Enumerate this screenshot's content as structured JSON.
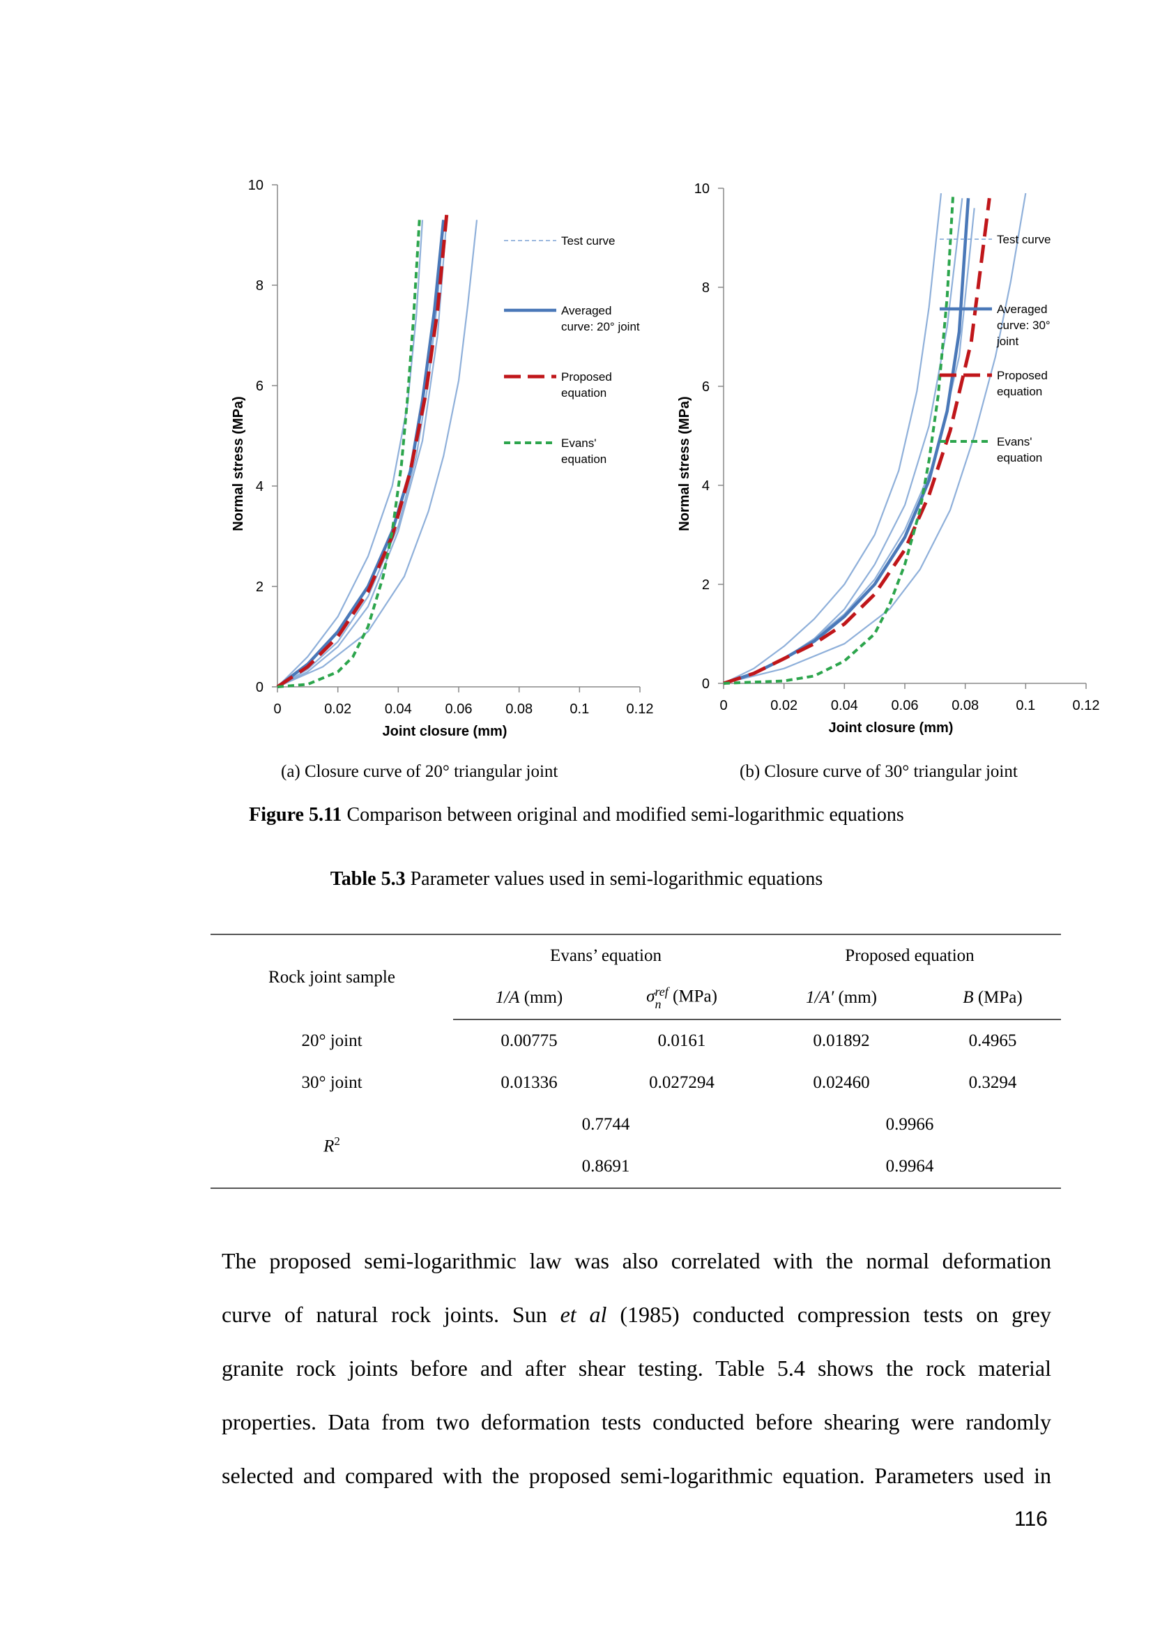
{
  "charts": [
    {
      "id": "a",
      "ylabel": "Normal stress (MPa)",
      "xlabel": "Joint closure (mm)",
      "x_ticks": [
        "0",
        "0.02",
        "0.04",
        "0.06",
        "0.08",
        "0.1",
        "0.12"
      ],
      "y_ticks": [
        "0",
        "2",
        "4",
        "6",
        "8",
        "10"
      ],
      "legend": [
        "Test curve",
        "Averaged curve: 20° joint",
        "Proposed equation",
        "Evans' equation"
      ]
    },
    {
      "id": "b",
      "ylabel": "Normal stress (MPa)",
      "xlabel": "Joint closure  (mm)",
      "x_ticks": [
        "0",
        "0.02",
        "0.04",
        "0.06",
        "0.08",
        "0.1",
        "0.12"
      ],
      "y_ticks": [
        "0",
        "2",
        "4",
        "6",
        "8",
        "10"
      ],
      "legend": [
        "Test curve",
        "Averaged curve: 30° joint",
        "Proposed equation",
        "Evans' equation"
      ]
    }
  ],
  "chart_data": [
    {
      "type": "line",
      "xlabel": "Joint closure (mm)",
      "ylabel": "Normal stress (MPa)",
      "xlim": [
        0,
        0.12
      ],
      "ylim": [
        0,
        10
      ],
      "legend_position": "right",
      "colors": {
        "test": "#7ba2d4",
        "averaged": "#4a78b8",
        "proposed": "#c0161a",
        "evans": "#2ca54c"
      },
      "series": [
        {
          "name": "Test curve",
          "style": "test",
          "x": [
            0,
            0.005,
            0.01,
            0.02,
            0.03,
            0.038,
            0.043,
            0.046,
            0.048
          ],
          "y": [
            0,
            0.3,
            0.6,
            1.4,
            2.6,
            4.0,
            5.6,
            7.4,
            9.3
          ]
        },
        {
          "name": "",
          "style": "test",
          "x": [
            0,
            0.01,
            0.02,
            0.03,
            0.04,
            0.046,
            0.05,
            0.053,
            0.055
          ],
          "y": [
            0,
            0.35,
            0.9,
            1.8,
            3.2,
            4.6,
            6.1,
            7.7,
            9.3
          ]
        },
        {
          "name": "",
          "style": "test",
          "x": [
            0,
            0.01,
            0.02,
            0.03,
            0.04,
            0.048,
            0.053,
            0.056
          ],
          "y": [
            0,
            0.3,
            0.8,
            1.6,
            3.1,
            4.9,
            7.0,
            9.3
          ]
        },
        {
          "name": "",
          "style": "test",
          "x": [
            0,
            0.015,
            0.03,
            0.042,
            0.05,
            0.055,
            0.06,
            0.063,
            0.066
          ],
          "y": [
            0,
            0.4,
            1.1,
            2.2,
            3.5,
            4.6,
            6.1,
            7.6,
            9.3
          ]
        },
        {
          "name": "Averaged curve: 20° joint",
          "style": "averaged",
          "x": [
            0,
            0.01,
            0.02,
            0.03,
            0.038,
            0.044,
            0.048,
            0.052,
            0.055
          ],
          "y": [
            0,
            0.45,
            1.1,
            2.0,
            3.1,
            4.3,
            5.7,
            7.5,
            9.3
          ]
        },
        {
          "name": "Proposed equation",
          "style": "proposed",
          "x": [
            0,
            0.01,
            0.02,
            0.03,
            0.038,
            0.044,
            0.049,
            0.053,
            0.056
          ],
          "y": [
            0,
            0.4,
            1.0,
            1.9,
            3.0,
            4.3,
            5.8,
            7.5,
            9.4
          ]
        },
        {
          "name": "Evans' equation",
          "style": "evans",
          "x": [
            0,
            0.01,
            0.02,
            0.025,
            0.03,
            0.035,
            0.038,
            0.041,
            0.043,
            0.045,
            0.047
          ],
          "y": [
            0,
            0.05,
            0.3,
            0.6,
            1.2,
            2.2,
            3.1,
            4.4,
            5.7,
            7.3,
            9.3
          ]
        }
      ]
    },
    {
      "type": "line",
      "xlabel": "Joint closure  (mm)",
      "ylabel": "Normal stress (MPa)",
      "xlim": [
        0,
        0.12
      ],
      "ylim": [
        0,
        10
      ],
      "legend_position": "right",
      "colors": {
        "test": "#7ba2d4",
        "averaged": "#4a78b8",
        "proposed": "#c0161a",
        "evans": "#2ca54c"
      },
      "series": [
        {
          "name": "Test curve",
          "style": "test",
          "x": [
            0,
            0.01,
            0.02,
            0.03,
            0.04,
            0.05,
            0.058,
            0.064,
            0.068,
            0.072
          ],
          "y": [
            0,
            0.3,
            0.75,
            1.3,
            2.0,
            3.0,
            4.3,
            5.9,
            7.6,
            9.9
          ]
        },
        {
          "name": "",
          "style": "test",
          "x": [
            0,
            0.01,
            0.02,
            0.03,
            0.04,
            0.05,
            0.06,
            0.068,
            0.074,
            0.079
          ],
          "y": [
            0,
            0.2,
            0.5,
            0.9,
            1.5,
            2.4,
            3.6,
            5.2,
            7.2,
            9.8
          ]
        },
        {
          "name": "",
          "style": "test",
          "x": [
            0,
            0.01,
            0.02,
            0.03,
            0.04,
            0.05,
            0.06,
            0.07,
            0.078,
            0.083
          ],
          "y": [
            0,
            0.2,
            0.5,
            0.9,
            1.4,
            2.1,
            3.1,
            4.5,
            6.6,
            9.6
          ]
        },
        {
          "name": "",
          "style": "test",
          "x": [
            0,
            0.02,
            0.04,
            0.055,
            0.065,
            0.075,
            0.083,
            0.09,
            0.095,
            0.1
          ],
          "y": [
            0,
            0.3,
            0.8,
            1.5,
            2.3,
            3.5,
            5.0,
            6.6,
            8.1,
            9.9
          ]
        },
        {
          "name": "Averaged curve: 30° joint",
          "style": "averaged",
          "x": [
            0,
            0.01,
            0.02,
            0.03,
            0.04,
            0.05,
            0.06,
            0.068,
            0.074,
            0.078,
            0.081
          ],
          "y": [
            0,
            0.2,
            0.5,
            0.85,
            1.35,
            2.0,
            2.95,
            4.1,
            5.5,
            7.1,
            9.8
          ]
        },
        {
          "name": "Proposed equation",
          "style": "proposed",
          "x": [
            0,
            0.01,
            0.02,
            0.03,
            0.04,
            0.05,
            0.06,
            0.068,
            0.075,
            0.082,
            0.088
          ],
          "y": [
            0,
            0.2,
            0.5,
            0.8,
            1.2,
            1.8,
            2.7,
            3.8,
            5.1,
            6.9,
            9.8
          ]
        },
        {
          "name": "Evans' equation",
          "style": "evans",
          "x": [
            0,
            0.02,
            0.03,
            0.04,
            0.05,
            0.055,
            0.06,
            0.065,
            0.068,
            0.071,
            0.074,
            0.076
          ],
          "y": [
            0,
            0.05,
            0.15,
            0.45,
            1.0,
            1.6,
            2.4,
            3.5,
            4.5,
            5.8,
            7.8,
            9.9
          ]
        }
      ]
    }
  ],
  "subcaption_a": "(a) Closure curve of 20° triangular joint",
  "subcaption_b": "(b) Closure curve of 30° triangular joint",
  "figure_caption": {
    "label": "Figure 5.11",
    "text": " Comparison between original and modified semi-logarithmic equations"
  },
  "table_caption": {
    "label": "Table 5.3",
    "text": " Parameter values used in semi-logarithmic equations"
  },
  "table": {
    "row_header": "Rock joint sample",
    "group_evans": "Evans’ equation",
    "group_proposed": "Proposed equation",
    "col_1_sym": "1/A",
    "col_1_unit": " (mm)",
    "col_2_sym": "σ",
    "col_2_sub": "n",
    "col_2_sup": "ref",
    "col_2_unit": " (MPa)",
    "col_3_sym": "1/A′",
    "col_3_unit": " (mm)",
    "col_4_sym": "B",
    "col_4_unit": " (MPa)",
    "rows": [
      {
        "sample": "20° joint",
        "v1": "0.00775",
        "v2": "0.0161",
        "v3": "0.01892",
        "v4": "0.4965"
      },
      {
        "sample": "30° joint",
        "v1": "0.01336",
        "v2": "0.027294",
        "v3": "0.02460",
        "v4": "0.3294"
      }
    ],
    "r2_label": "R",
    "r2_sup": "2",
    "r2_evans": [
      "0.7744",
      "0.8691"
    ],
    "r2_proposed": [
      "0.9966",
      "0.9964"
    ]
  },
  "body": {
    "line1": "The proposed semi-logarithmic law was also correlated with the normal deformation",
    "line2_a": "curve of natural rock joints. Sun ",
    "line2_em": "et al",
    "line2_b": " (1985) conducted compression tests on grey",
    "line3": "granite rock joints before and after shear testing. Table 5.4 shows the rock material",
    "line4": "properties. Data from two deformation tests conducted before shearing were randomly",
    "line5": "selected and compared with the proposed semi-logarithmic equation. Parameters used in"
  },
  "page_number": "116"
}
